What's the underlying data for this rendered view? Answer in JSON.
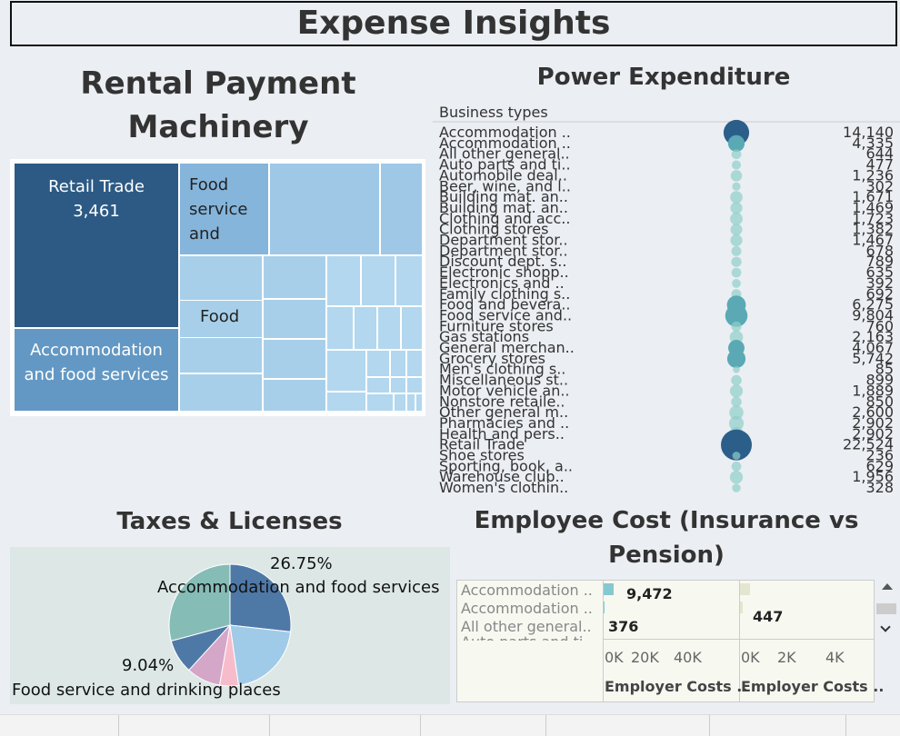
{
  "page": {
    "title": "Expense Insights"
  },
  "rental": {
    "title_line1": "Rental Payment",
    "title_line2": "Machinery",
    "labels": {
      "retail_name": "Retail Trade",
      "retail_value": "3,461",
      "accom": "Accommodation and food services",
      "food_service_1": "Food",
      "food_service_2": "service",
      "food_service_3": "and",
      "food": "Food"
    },
    "colors": {
      "dark": "#2c5a85",
      "mid": "#6398c4",
      "light": "#9fc8e6",
      "lighter": "#b2d7ee"
    }
  },
  "power": {
    "title": "Power Expenditure",
    "header": "Business types",
    "chart_data": {
      "type": "scatter",
      "categories": [
        "Accommodation ..",
        "Accommodation ..",
        "All other general..",
        "Auto parts and ti..",
        "Automobile deal..",
        "Beer, wine, and l..",
        "Building mat. an..",
        "Building mat. an..",
        "Clothing and acc..",
        "Clothing stores",
        "Department stor..",
        "Department stor..",
        "Discount dept. s..",
        "Electronic shopp..",
        "Electronics and ..",
        "Family clothing s..",
        "Food and bevera..",
        "Food service and..",
        "Furniture stores",
        "Gas stations",
        "General merchan..",
        "Grocery stores",
        "Men's clothing s..",
        "Miscellaneous st..",
        "Motor vehicle an..",
        "Nonstore retaile..",
        "Other general m..",
        "Pharmacies and ..",
        "Health and pers..",
        "Retail Trade",
        "Shoe stores",
        "Sporting, book, a..",
        "Warehouse club..",
        "Women's clothin.."
      ],
      "values": [
        14140,
        4335,
        644,
        477,
        1236,
        302,
        1671,
        1469,
        1723,
        1382,
        1467,
        678,
        789,
        635,
        392,
        692,
        6275,
        9804,
        760,
        2163,
        4067,
        5742,
        85,
        899,
        1889,
        850,
        2600,
        2902,
        2902,
        22524,
        236,
        629,
        1956,
        328
      ],
      "value_labels": [
        "14,140",
        "4,335",
        "644",
        "477",
        "1,236",
        "302",
        "1,671",
        "1,469",
        "1,723",
        "1,382",
        "1,467",
        "678",
        "789",
        "635",
        "392",
        "692",
        "6,275",
        "9,804",
        "760",
        "2,163",
        "4,067",
        "5,742",
        "85",
        "899",
        "1,889",
        "850",
        "2,600",
        "2,902",
        "2,902",
        "22,524",
        "236",
        "629",
        "1,956",
        "328"
      ]
    },
    "colors": {
      "small": "#8fcfc9",
      "mid": "#5aa9b5",
      "large": "#2b5f8a"
    }
  },
  "taxes": {
    "title": "Taxes & Licenses",
    "chart_data": {
      "type": "pie",
      "slices": [
        {
          "name": "Accommodation and food services",
          "value": 26.75,
          "color": "#4e79a7"
        },
        {
          "name": "",
          "value": 21.0,
          "color": "#a0cbe8"
        },
        {
          "name": "",
          "value": 5.0,
          "color": "#f7bccb"
        },
        {
          "name": "",
          "value": 9.04,
          "color": "#d4a6c8"
        },
        {
          "name": "Food service and drinking places",
          "value": 9.04,
          "color": "#4e79a7"
        },
        {
          "name": "",
          "value": 29.17,
          "color": "#86bcb6"
        }
      ]
    },
    "label_pct_1": "26.75%",
    "label_name_1": "Accommodation and food services",
    "label_pct_2": "9.04%",
    "label_name_2": "Food service and drinking places"
  },
  "employee": {
    "title_line1": "Employee Cost (Insurance vs",
    "title_line2": "Pension)",
    "rows": [
      "Accommodation ..",
      "Accommodation ..",
      "All other general..",
      "Auto parts and ti.."
    ],
    "insurance": {
      "values": [
        9472,
        376
      ],
      "labels": [
        "9,472",
        "376"
      ],
      "ticks": [
        "0K",
        "20K",
        "40K"
      ],
      "axis_title": "Employer Costs .."
    },
    "pension": {
      "values": [
        447
      ],
      "labels": [
        "447"
      ],
      "ticks": [
        "0K",
        "2K",
        "4K"
      ],
      "axis_title": "Employer Costs .."
    },
    "colors": {
      "insurance": "#86c8cf",
      "pension": "#e4e6cf"
    }
  }
}
